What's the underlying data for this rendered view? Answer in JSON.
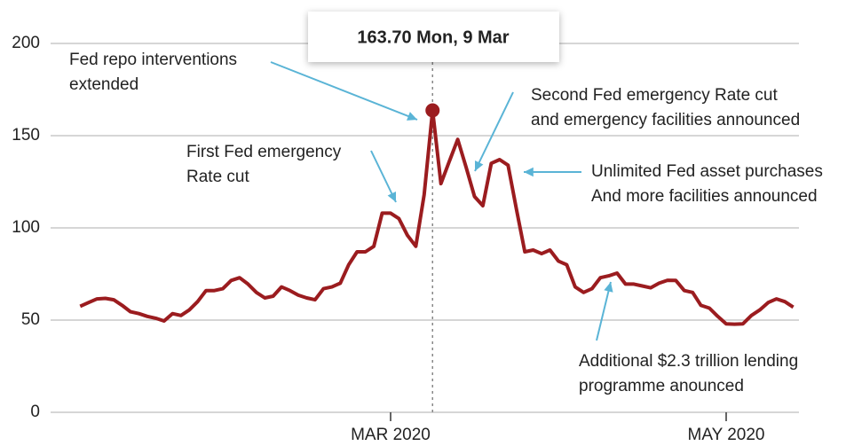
{
  "chart_data": {
    "type": "line",
    "tooltip": "163.70 Mon, 9 Mar",
    "highlight_index": 42,
    "categories": [
      null,
      null,
      null,
      null,
      null,
      null,
      null,
      null,
      null,
      null,
      null,
      null,
      null,
      null,
      null,
      null,
      null,
      null,
      null,
      null,
      null,
      null,
      null,
      null,
      null,
      null,
      null,
      null,
      null,
      null,
      null,
      null,
      null,
      null,
      null,
      null,
      null,
      "MAR 2020",
      null,
      null,
      null,
      null,
      null,
      null,
      null,
      null,
      null,
      null,
      null,
      null,
      null,
      null,
      null,
      null,
      null,
      null,
      null,
      null,
      null,
      null,
      null,
      null,
      null,
      null,
      null,
      null,
      null,
      null,
      null,
      null,
      null,
      null,
      null,
      null,
      null,
      null,
      null,
      "MAY 2020",
      null,
      null,
      null,
      null,
      null,
      null,
      null,
      null
    ],
    "series": [
      {
        "color": "#9b1c1f",
        "values": [
          57.5,
          59.5,
          61.5,
          61.8,
          61,
          58,
          54.5,
          53.5,
          52,
          51,
          49.5,
          53.5,
          52.5,
          55.5,
          60,
          66,
          66,
          67,
          71.5,
          73,
          69.5,
          65,
          62,
          63,
          68,
          66,
          63.5,
          62,
          61,
          67,
          68,
          70,
          80,
          87,
          87,
          90,
          108,
          108,
          105,
          96,
          90,
          118,
          163.7,
          124,
          136,
          148,
          133,
          117,
          112,
          135,
          137,
          134,
          110,
          87,
          88,
          86,
          88,
          82,
          80,
          68,
          65,
          67,
          73,
          74,
          75.5,
          69.5,
          69.5,
          68.5,
          67.5,
          70,
          71.6,
          71.5,
          66,
          65,
          58,
          56.5,
          52,
          48,
          47.8,
          48,
          52.5,
          55.5,
          59.5,
          61.5,
          60,
          57
        ]
      }
    ],
    "ylim": [
      0,
      200
    ],
    "yticks": [
      0,
      50,
      100,
      150,
      200
    ],
    "grid": true,
    "annotations": [
      {
        "lines": [
          "Fed repo interventions",
          "extended"
        ]
      },
      {
        "lines": [
          "First Fed emergency",
          "Rate cut"
        ]
      },
      {
        "lines": [
          "Second Fed emergency Rate cut",
          "and emergency facilities announced"
        ]
      },
      {
        "lines": [
          "Unlimited Fed asset purchases",
          "And more facilities announced"
        ]
      },
      {
        "lines": [
          "Additional $2.3 trillion lending",
          "programme anounced"
        ]
      }
    ],
    "annotation_color": "#5ab4d6"
  }
}
